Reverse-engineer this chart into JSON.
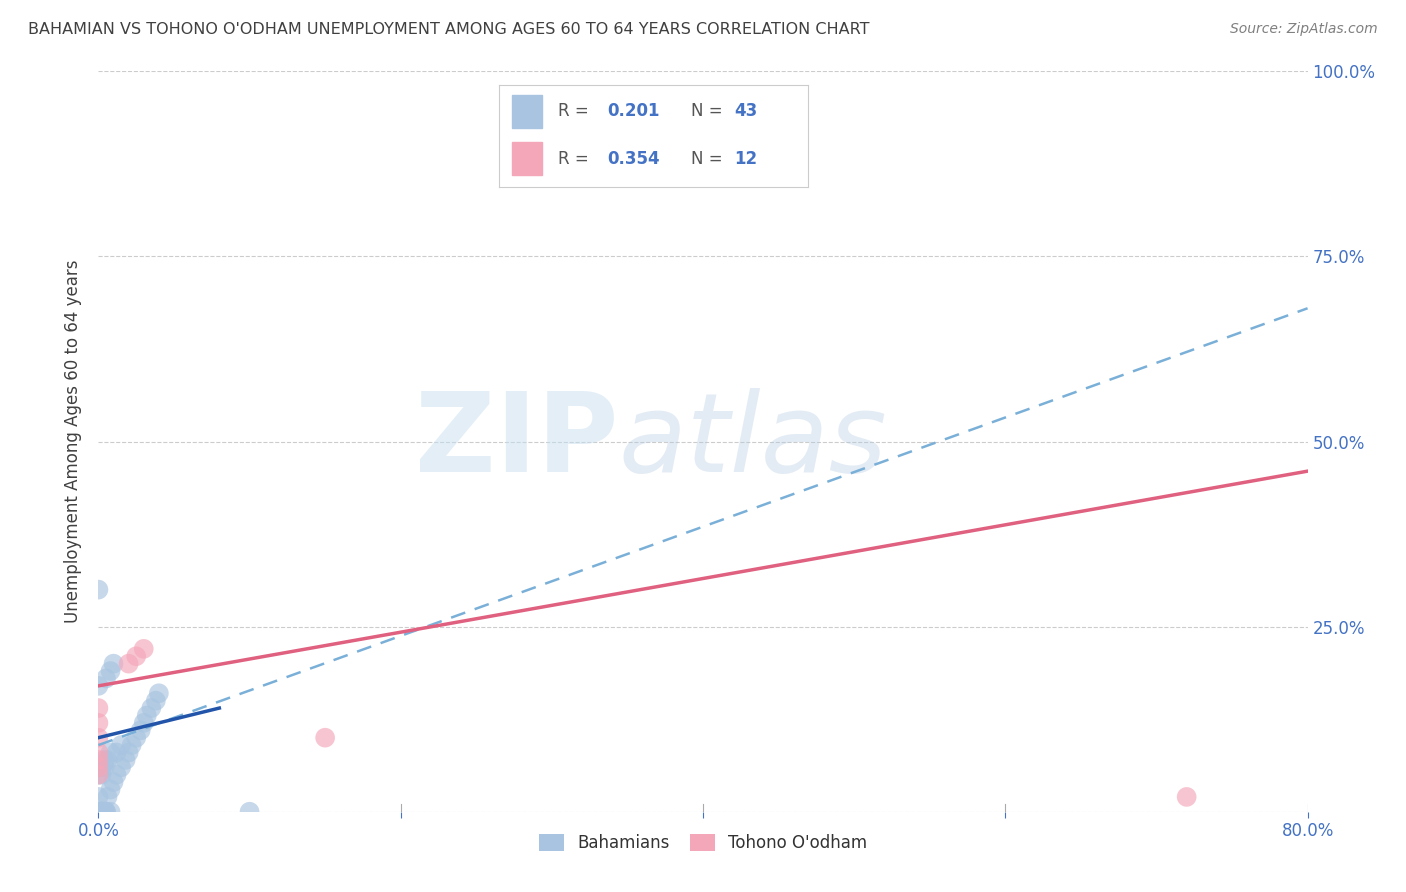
{
  "title": "BAHAMIAN VS TOHONO O'ODHAM UNEMPLOYMENT AMONG AGES 60 TO 64 YEARS CORRELATION CHART",
  "source": "Source: ZipAtlas.com",
  "ylabel": "Unemployment Among Ages 60 to 64 years",
  "xlim": [
    0.0,
    0.8
  ],
  "ylim": [
    0.0,
    1.0
  ],
  "xticks": [
    0.0,
    0.2,
    0.4,
    0.6,
    0.8
  ],
  "xticklabels": [
    "0.0%",
    "",
    "",
    "",
    "80.0%"
  ],
  "yticks": [
    0.0,
    0.25,
    0.5,
    0.75,
    1.0
  ],
  "yticklabels": [
    "",
    "25.0%",
    "50.0%",
    "75.0%",
    "100.0%"
  ],
  "bahamian_color": "#a8c4e0",
  "tohono_color": "#f4a7b9",
  "bahamian_R": 0.201,
  "bahamian_N": 43,
  "tohono_R": 0.354,
  "tohono_N": 12,
  "bahamian_scatter": [
    [
      0.0,
      0.0
    ],
    [
      0.0,
      0.0
    ],
    [
      0.001,
      0.0
    ],
    [
      0.002,
      0.0
    ],
    [
      0.003,
      0.0
    ],
    [
      0.004,
      0.0
    ],
    [
      0.005,
      0.0
    ],
    [
      0.0,
      0.02
    ],
    [
      0.006,
      0.02
    ],
    [
      0.008,
      0.03
    ],
    [
      0.01,
      0.04
    ],
    [
      0.012,
      0.05
    ],
    [
      0.015,
      0.06
    ],
    [
      0.018,
      0.07
    ],
    [
      0.02,
      0.08
    ],
    [
      0.022,
      0.09
    ],
    [
      0.025,
      0.1
    ],
    [
      0.028,
      0.11
    ],
    [
      0.03,
      0.12
    ],
    [
      0.032,
      0.13
    ],
    [
      0.035,
      0.14
    ],
    [
      0.038,
      0.15
    ],
    [
      0.04,
      0.16
    ],
    [
      0.0,
      0.17
    ],
    [
      0.005,
      0.18
    ],
    [
      0.008,
      0.19
    ],
    [
      0.01,
      0.2
    ],
    [
      0.012,
      0.08
    ],
    [
      0.015,
      0.09
    ],
    [
      0.002,
      0.05
    ],
    [
      0.004,
      0.06
    ],
    [
      0.006,
      0.07
    ],
    [
      0.008,
      0.08
    ],
    [
      0.0,
      0.05
    ],
    [
      0.002,
      0.06
    ],
    [
      0.004,
      0.07
    ],
    [
      0.0,
      0.3
    ],
    [
      0.008,
      0.0
    ],
    [
      0.1,
      0.0
    ],
    [
      0.002,
      0.0
    ],
    [
      0.001,
      0.0
    ],
    [
      0.003,
      0.0
    ],
    [
      0.005,
      0.0
    ]
  ],
  "tohono_scatter": [
    [
      0.0,
      0.08
    ],
    [
      0.0,
      0.1
    ],
    [
      0.02,
      0.2
    ],
    [
      0.025,
      0.21
    ],
    [
      0.03,
      0.22
    ],
    [
      0.0,
      0.12
    ],
    [
      0.0,
      0.14
    ],
    [
      0.15,
      0.1
    ],
    [
      0.72,
      0.02
    ],
    [
      0.0,
      0.05
    ],
    [
      0.0,
      0.06
    ],
    [
      0.0,
      0.07
    ]
  ],
  "bahamian_trend": [
    0.0,
    0.1,
    0.08,
    0.14
  ],
  "tohono_trend": [
    0.0,
    0.17,
    0.8,
    0.46
  ],
  "dashed_trend": [
    0.0,
    0.09,
    0.8,
    0.68
  ],
  "watermark_zip": "ZIP",
  "watermark_atlas": "atlas",
  "bg_color": "#ffffff",
  "grid_color": "#cccccc",
  "tick_color": "#4472c4",
  "title_color": "#404040",
  "ylabel_color": "#404040",
  "source_color": "#808080"
}
